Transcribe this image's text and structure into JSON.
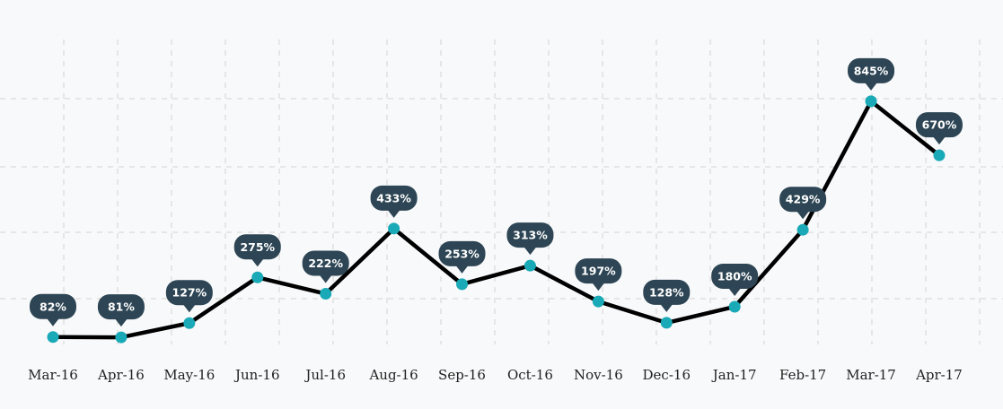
{
  "chart_data": {
    "type": "line",
    "title": "",
    "xlabel": "",
    "ylabel": "",
    "categories": [
      "Mar-16",
      "Apr-16",
      "May-16",
      "Jun-16",
      "Jul-16",
      "Aug-16",
      "Sep-16",
      "Oct-16",
      "Nov-16",
      "Dec-16",
      "Jan-17",
      "Feb-17",
      "Mar-17",
      "Apr-17"
    ],
    "values": [
      82,
      81,
      127,
      275,
      222,
      433,
      253,
      313,
      197,
      128,
      180,
      429,
      845,
      670
    ],
    "value_labels": [
      "82%",
      "81%",
      "127%",
      "275%",
      "222%",
      "433%",
      "253%",
      "313%",
      "197%",
      "128%",
      "180%",
      "429%",
      "845%",
      "670%"
    ],
    "ylim": [
      0,
      1000
    ],
    "grid": true,
    "legend": "none",
    "colors": {
      "line": "#000000",
      "marker": "#1aa9b6",
      "label_bg": "#2d4554",
      "label_text": "#ffffff",
      "grid": "#d4d4d4",
      "background": "#f8f9fa"
    }
  }
}
